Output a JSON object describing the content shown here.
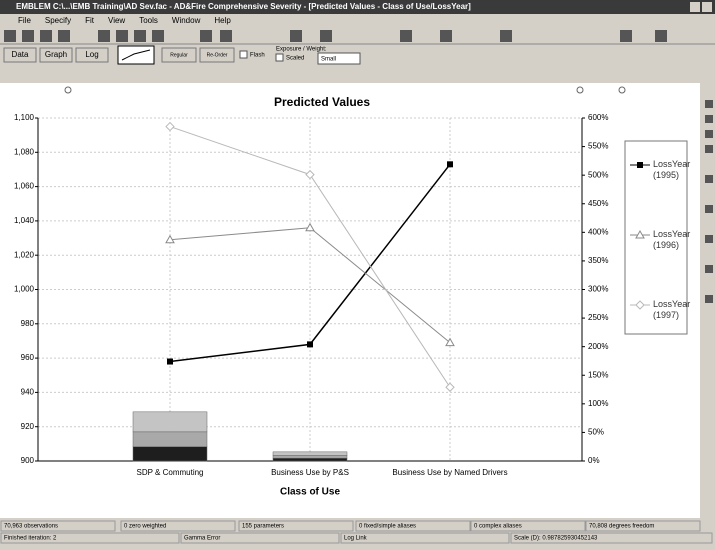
{
  "window": {
    "title": "EMBLEM C:\\...\\EMB Training\\AD Sev.fac - AD&Fire Comprehensive Severity - [Predicted Values - Class of Use/LossYear]"
  },
  "menu": [
    "File",
    "Specify",
    "Fit",
    "View",
    "Tools",
    "Window",
    "Help"
  ],
  "toolbar": {
    "buttons": [
      "Data",
      "Graph",
      "Log"
    ],
    "small_buttons": [
      "Regular",
      "Re-Order"
    ],
    "flash": "Flash",
    "weight_label": "Exposure / Weight:",
    "scaled": "Scaled",
    "size": "Small"
  },
  "chart_data": {
    "type": "line",
    "title": "Predicted Values",
    "x_label": "Class of Use",
    "categories": [
      "SDP & Commuting",
      "Business Use by P&S",
      "Business Use by Named Drivers"
    ],
    "ylim": [
      900,
      1100
    ],
    "yticks": [
      900,
      920,
      940,
      960,
      980,
      {
        "value": 1000,
        "label": "1,000"
      },
      {
        "value": 1020,
        "label": "1,020"
      },
      {
        "value": 1040,
        "label": "1,040"
      },
      {
        "value": 1060,
        "label": "1,060"
      },
      {
        "value": 1080,
        "label": "1,080"
      },
      {
        "value": 1100,
        "label": "1,100"
      }
    ],
    "y2lim": [
      0,
      600
    ],
    "y2ticks": [
      {
        "value": 0,
        "label": "0%"
      },
      {
        "value": 50,
        "label": "50%"
      },
      {
        "value": 100,
        "label": "100%"
      },
      {
        "value": 150,
        "label": "150%"
      },
      {
        "value": 200,
        "label": "200%"
      },
      {
        "value": 250,
        "label": "250%"
      },
      {
        "value": 300,
        "label": "300%"
      },
      {
        "value": 350,
        "label": "350%"
      },
      {
        "value": 400,
        "label": "400%"
      },
      {
        "value": 450,
        "label": "450%"
      },
      {
        "value": 500,
        "label": "500%"
      },
      {
        "value": 550,
        "label": "550%"
      },
      {
        "value": 600,
        "label": "600%"
      }
    ],
    "grid": true,
    "legend": "right",
    "series": [
      {
        "name": "LossYear (1995)",
        "color": "#000000",
        "marker": "square",
        "values": [
          958,
          968,
          1073
        ]
      },
      {
        "name": "LossYear (1996)",
        "color": "#8a8a8a",
        "marker": "triangle",
        "values": [
          1029,
          1036,
          969
        ]
      },
      {
        "name": "LossYear (1997)",
        "color": "#b8b8b8",
        "marker": "diamond",
        "values": [
          1095,
          1067,
          943
        ]
      }
    ],
    "exposure": [
      {
        "color": "#1e1e1e",
        "axis": "y2",
        "values": [
          25,
          5,
          0
        ]
      },
      {
        "color": "#a9a9a9",
        "axis": "y2",
        "values": [
          26,
          5,
          0
        ]
      },
      {
        "color": "#c4c4c4",
        "axis": "y2",
        "values": [
          35,
          6,
          0
        ]
      }
    ]
  },
  "status": {
    "row1": [
      "70,963 observations",
      "0 zero weighted",
      "155 parameters",
      "0 fixed/simple aliases",
      "0 complex aliases",
      "70,808 degrees freedom"
    ],
    "row2": [
      "Finished iteration: 2",
      "Gamma Error",
      "Log Link",
      "Scale (D): 0.987825930452143"
    ]
  }
}
